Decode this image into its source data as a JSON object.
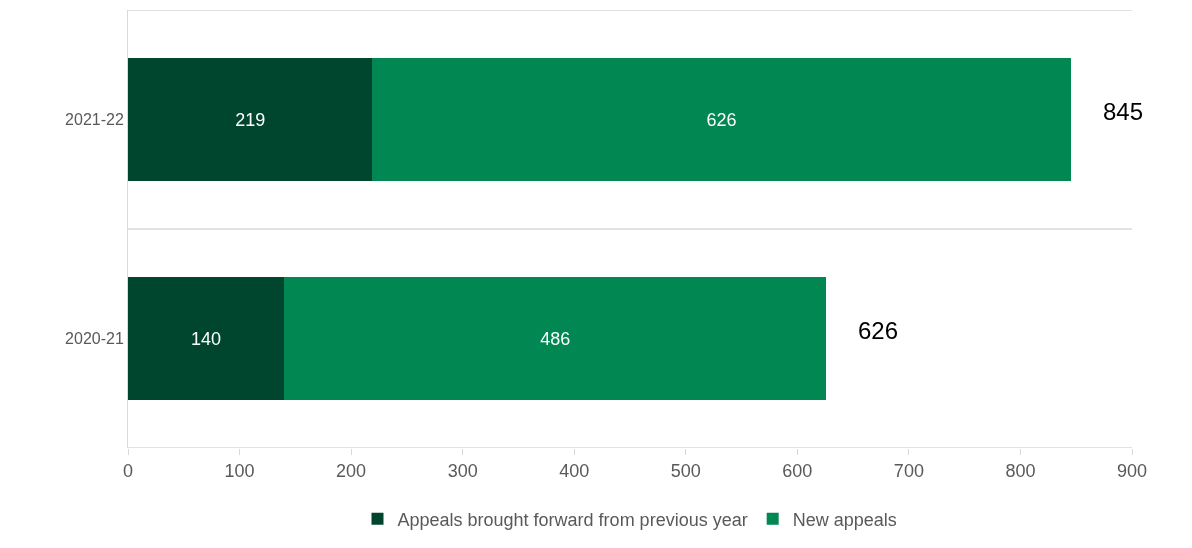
{
  "chart_data": {
    "type": "bar",
    "orientation": "horizontal",
    "stacked": true,
    "categories": [
      "2021-22",
      "2020-21"
    ],
    "series": [
      {
        "name": "Appeals brought forward from previous year",
        "color": "#00462f",
        "values": [
          219,
          140
        ]
      },
      {
        "name": "New appeals",
        "color": "#008752",
        "values": [
          626,
          486
        ]
      }
    ],
    "totals": [
      "845",
      "626"
    ],
    "data_labels": true,
    "xlim": [
      0,
      900
    ],
    "xticks": [
      0,
      100,
      200,
      300,
      400,
      500,
      600,
      700,
      800,
      900
    ],
    "grid": "y",
    "legend": "bottom"
  }
}
